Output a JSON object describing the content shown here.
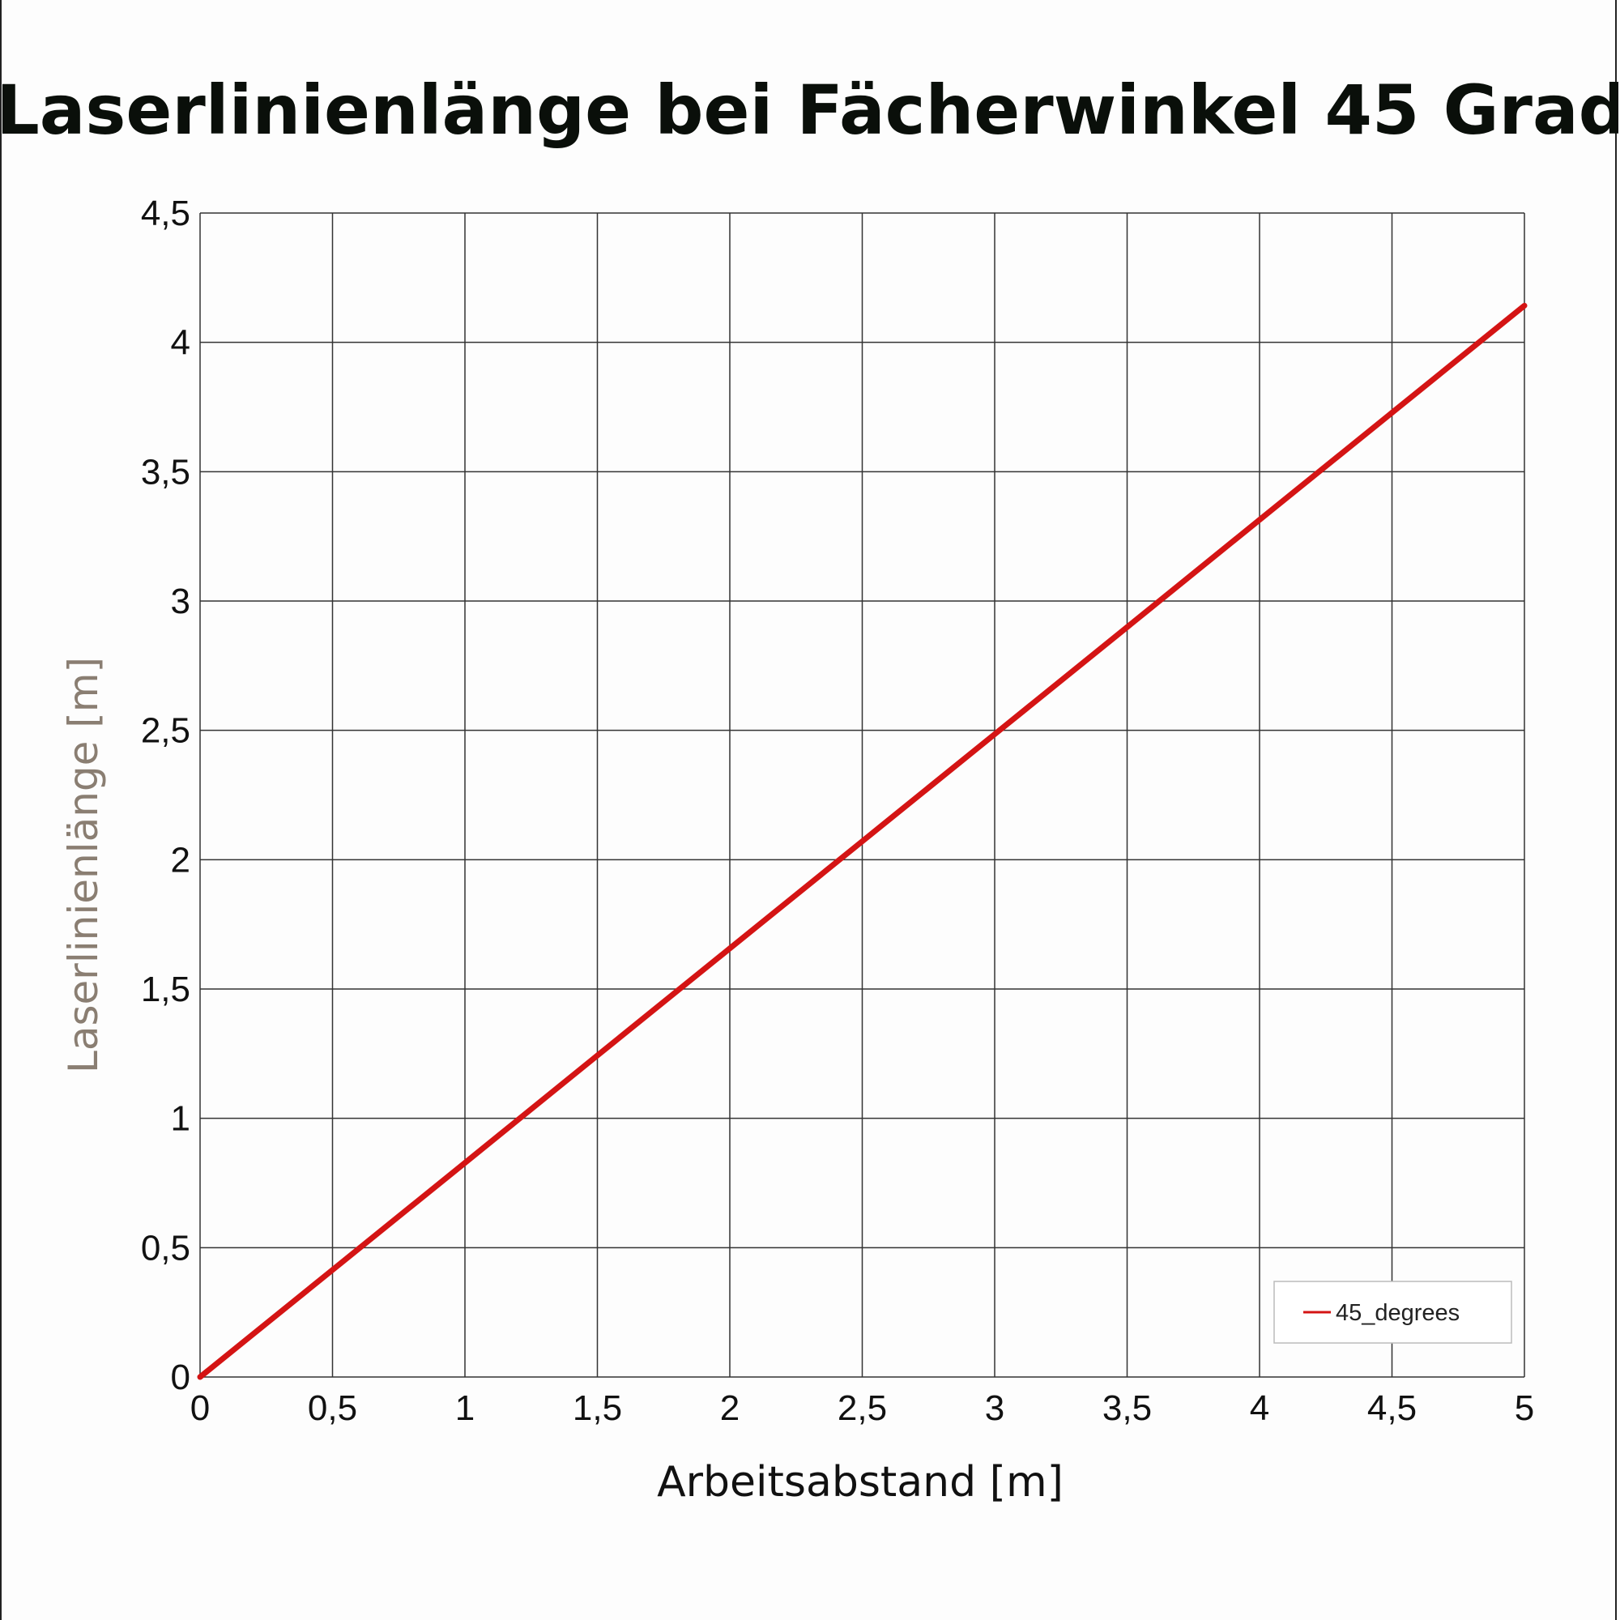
{
  "chart_data": {
    "type": "line",
    "title": "Laserlinienlänge bei Fächerwinkel 45 Grad",
    "xlabel": "Arbeitsabstand [m]",
    "ylabel": "Laserlinienlänge [m]",
    "xlim": [
      0,
      5
    ],
    "ylim": [
      0,
      4.5
    ],
    "x_ticks": [
      "0",
      "0,5",
      "1",
      "1,5",
      "2",
      "2,5",
      "3",
      "3,5",
      "4",
      "4,5",
      "5"
    ],
    "y_ticks": [
      "0",
      "0,5",
      "1",
      "1,5",
      "2",
      "2,5",
      "3",
      "3,5",
      "4",
      "4,5"
    ],
    "grid": true,
    "legend_position": "bottom-right",
    "series": [
      {
        "name": "45_degrees",
        "color": "#d41414",
        "x": [
          0,
          0.5,
          1,
          1.5,
          2,
          2.5,
          3,
          3.5,
          4,
          4.5,
          5
        ],
        "y": [
          0,
          0.414,
          0.828,
          1.243,
          1.657,
          2.071,
          2.485,
          2.899,
          3.314,
          3.728,
          4.142
        ]
      }
    ]
  }
}
